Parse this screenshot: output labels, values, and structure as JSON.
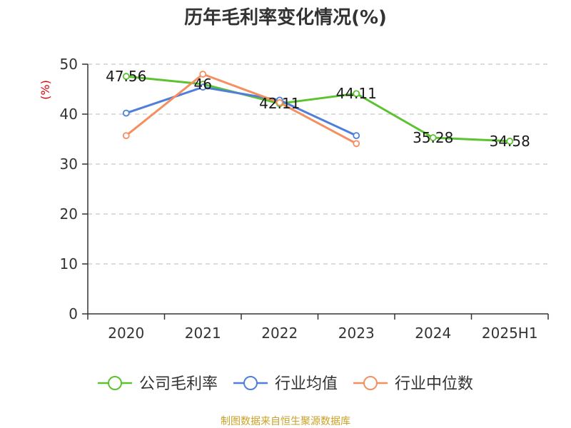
{
  "chart_data": {
    "type": "line",
    "title": "历年毛利率变化情况(%)",
    "unit_label": "(%)",
    "categories": [
      "2020",
      "2021",
      "2022",
      "2023",
      "2024",
      "2025H1"
    ],
    "ylim": [
      0,
      50
    ],
    "yticks": [
      0,
      10,
      20,
      30,
      40,
      50
    ],
    "grid": true,
    "legend_position": "bottom",
    "series": [
      {
        "name": "公司毛利率",
        "color": "#5bc230",
        "values": [
          47.56,
          46,
          42.11,
          44.11,
          35.28,
          34.58
        ],
        "show_labels": true
      },
      {
        "name": "行业均值",
        "color": "#4f7fdb",
        "values": [
          40.2,
          45.4,
          42.8,
          35.7,
          null,
          null
        ],
        "show_labels": false
      },
      {
        "name": "行业中位数",
        "color": "#f58f5f",
        "values": [
          35.7,
          48.0,
          42.3,
          34.1,
          null,
          null
        ],
        "show_labels": false
      }
    ],
    "data_labels": [
      "47.56",
      "46",
      "42.11",
      "44.11",
      "35.28",
      "34.58"
    ]
  },
  "source_text": "制图数据来自恒生聚源数据库"
}
